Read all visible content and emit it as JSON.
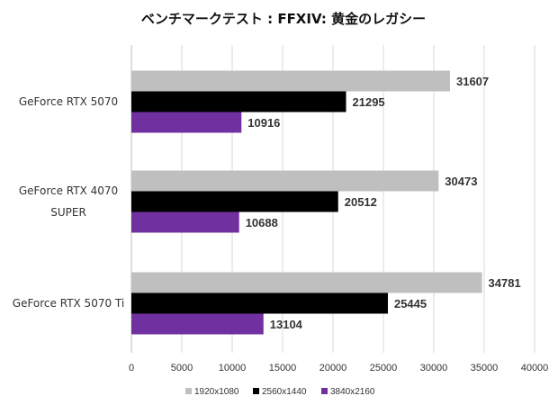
{
  "chart_data": {
    "type": "bar",
    "orientation": "horizontal",
    "title": "ベンチマークテスト : FFXIV: 黄金のレガシー",
    "categories": [
      [
        "GeForce RTX 5070"
      ],
      [
        "GeForce RTX 4070",
        "SUPER"
      ],
      [
        "GeForce RTX 5070 Ti"
      ]
    ],
    "series": [
      {
        "name": "1920x1080",
        "color": "#bfbfbf",
        "values": [
          31607,
          30473,
          34781
        ]
      },
      {
        "name": "2560x1440",
        "color": "#000000",
        "values": [
          21295,
          20512,
          25445
        ]
      },
      {
        "name": "3840x2160",
        "color": "#7030a0",
        "values": [
          10916,
          10688,
          13104
        ]
      }
    ],
    "xlim": [
      0,
      40000
    ],
    "xticks": [
      0,
      5000,
      10000,
      15000,
      20000,
      25000,
      30000,
      35000,
      40000
    ],
    "grid": true,
    "legend_position": "bottom",
    "xlabel": "",
    "ylabel": ""
  }
}
